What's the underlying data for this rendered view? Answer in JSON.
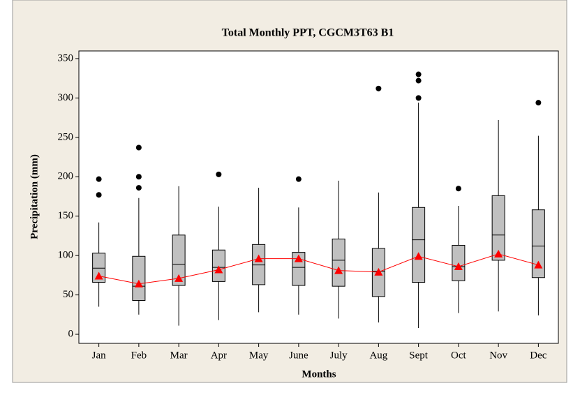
{
  "chart_data": {
    "type": "box",
    "title": "Total Monthly PPT, CGCM3T63 B1",
    "x_label": "Months",
    "y_label": "Precipitation (mm)",
    "categories": [
      "Jan",
      "Feb",
      "Mar",
      "Apr",
      "May",
      "June",
      "July",
      "Aug",
      "Sept",
      "Oct",
      "Nov",
      "Dec"
    ],
    "whisker_low": [
      35,
      25,
      11,
      18,
      28,
      25,
      20,
      15,
      8,
      27,
      29,
      24
    ],
    "q1": [
      66,
      43,
      62,
      67,
      63,
      62,
      61,
      48,
      66,
      68,
      94,
      72
    ],
    "median": [
      84,
      61,
      89,
      85,
      88,
      85,
      94,
      80,
      120,
      86,
      126,
      112
    ],
    "q3": [
      103,
      99,
      126,
      107,
      114,
      104,
      121,
      109,
      161,
      113,
      176,
      158
    ],
    "whisker_high": [
      142,
      173,
      188,
      162,
      186,
      161,
      195,
      180,
      294,
      163,
      272,
      252
    ],
    "outliers": [
      [
        177,
        197
      ],
      [
        186,
        200,
        237
      ],
      [],
      [
        203
      ],
      [],
      [
        197
      ],
      [],
      [
        312
      ],
      [
        300,
        322,
        330
      ],
      [
        185
      ],
      [],
      [
        294
      ]
    ],
    "means": [
      74,
      64,
      71,
      82,
      96,
      96,
      81,
      79,
      99,
      86,
      102,
      88
    ],
    "box_color": "#c0c0c0",
    "mean_color": "#ff0000",
    "ylim": [
      -11.5,
      359.7
    ],
    "yticks": [
      0,
      50,
      100,
      150,
      200,
      250,
      300,
      350
    ]
  }
}
